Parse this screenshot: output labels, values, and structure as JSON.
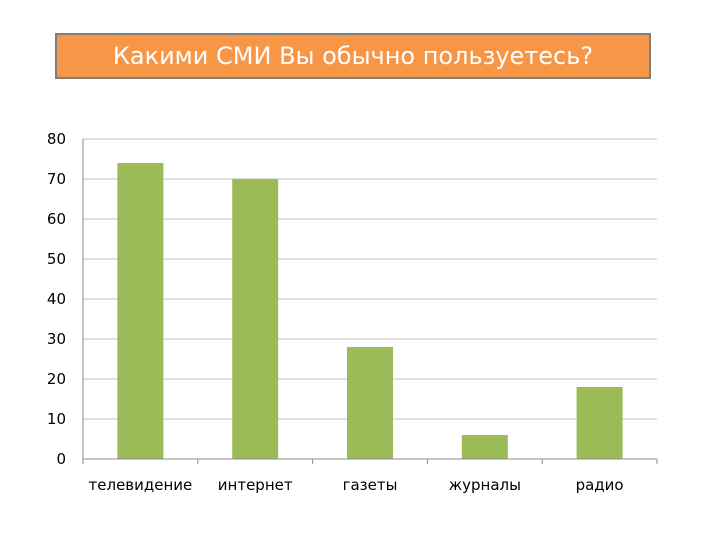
{
  "chart_data": {
    "type": "bar",
    "title": "Какими СМИ Вы обычно пользуетесь?",
    "categories": [
      "телевидение",
      "интернет",
      "газеты",
      "журналы",
      "радио"
    ],
    "values": [
      74,
      70,
      28,
      6,
      18
    ],
    "ylim": [
      0,
      80
    ],
    "yticks": [
      0,
      10,
      20,
      30,
      40,
      50,
      60,
      70,
      80
    ],
    "grid": true,
    "bar_color": "#9bbb59",
    "title_bg": "#f79646"
  }
}
